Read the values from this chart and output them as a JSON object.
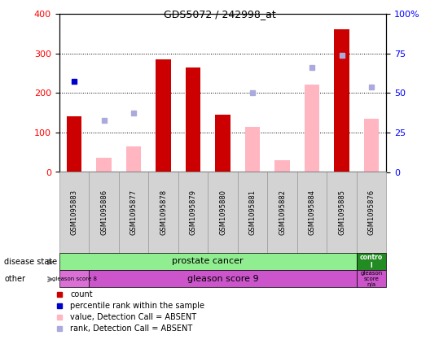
{
  "title": "GDS5072 / 242998_at",
  "samples": [
    "GSM1095883",
    "GSM1095886",
    "GSM1095877",
    "GSM1095878",
    "GSM1095879",
    "GSM1095880",
    "GSM1095881",
    "GSM1095882",
    "GSM1095884",
    "GSM1095885",
    "GSM1095876"
  ],
  "count_values": [
    140,
    null,
    null,
    285,
    265,
    145,
    null,
    null,
    null,
    360,
    null
  ],
  "value_absent": [
    null,
    35,
    65,
    null,
    null,
    null,
    115,
    30,
    220,
    null,
    135
  ],
  "rank_absent": [
    null,
    130,
    150,
    null,
    null,
    null,
    200,
    null,
    265,
    295,
    215
  ],
  "percentile_rank": [
    230,
    null,
    null,
    null,
    null,
    null,
    null,
    null,
    null,
    null,
    null
  ],
  "ylim_left": [
    0,
    400
  ],
  "ylim_right": [
    0,
    100
  ],
  "left_ticks": [
    0,
    100,
    200,
    300,
    400
  ],
  "right_ticks": [
    0,
    25,
    50,
    75,
    100
  ],
  "bar_color_red": "#CC0000",
  "bar_color_pink": "#FFB6C1",
  "dot_color_blue": "#0000CC",
  "dot_color_lightblue": "#AAAADD",
  "legend_items": [
    "count",
    "percentile rank within the sample",
    "value, Detection Call = ABSENT",
    "rank, Detection Call = ABSENT"
  ],
  "legend_colors": [
    "#CC0000",
    "#0000CC",
    "#FFB6C1",
    "#AAAADD"
  ],
  "ds_green": "#90EE90",
  "ds_darkgreen": "#228B22",
  "gl_lightpurple": "#DA70D6",
  "gl_purple": "#CC55CC",
  "ax_bg": "#FFFFFF",
  "bar_width": 0.5
}
